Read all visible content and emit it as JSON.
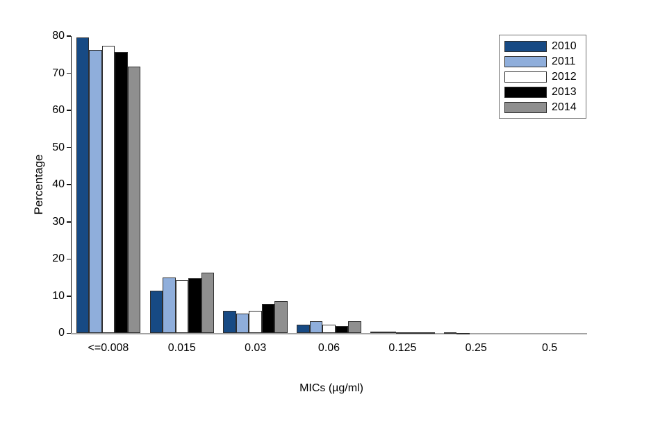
{
  "chart_data": {
    "type": "bar",
    "title": "",
    "xlabel": "MICs (µg/ml)",
    "ylabel": "Percentage",
    "ylim": [
      0,
      80
    ],
    "ytick_step": 10,
    "grid": false,
    "legend_position": "top-right",
    "categories": [
      "<=0.008",
      "0.015",
      "0.03",
      "0.06",
      "0.125",
      "0.25",
      "0.5"
    ],
    "series": [
      {
        "name": "2010",
        "color": "#174a84",
        "values": [
          79.7,
          11.4,
          6.0,
          2.4,
          0.4,
          0.2,
          0
        ]
      },
      {
        "name": "2011",
        "color": "#8faedb",
        "values": [
          76.2,
          15.1,
          5.3,
          3.2,
          0.4,
          0.1,
          0
        ]
      },
      {
        "name": "2012",
        "color": "#ffffff",
        "values": [
          77.3,
          14.2,
          6.0,
          2.3,
          0.2,
          0,
          0
        ]
      },
      {
        "name": "2013",
        "color": "#000000",
        "values": [
          75.7,
          14.9,
          7.9,
          1.9,
          0.2,
          0,
          0
        ]
      },
      {
        "name": "2014",
        "color": "#8f8f8f",
        "values": [
          71.7,
          16.4,
          8.6,
          3.2,
          0.2,
          0,
          0
        ]
      }
    ],
    "axis_colors": {
      "y_axis": "#111111",
      "x_axis": "#a3a3a3"
    }
  }
}
